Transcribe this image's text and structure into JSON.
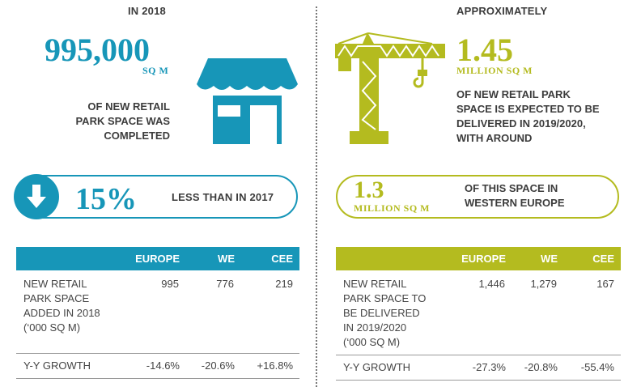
{
  "left": {
    "intro": "IN 2018",
    "big_number": "995,000",
    "unit": "SQ M",
    "caption_lines": [
      "OF NEW RETAIL",
      "PARK SPACE WAS",
      "COMPLETED"
    ],
    "pill_percent": "15%",
    "pill_text": "LESS THAN IN 2017",
    "table": {
      "headers": [
        "",
        "EUROPE",
        "WE",
        "CEE"
      ],
      "row1_label_lines": [
        "NEW RETAIL",
        "PARK SPACE",
        "ADDED IN 2018",
        "(‘000 SQ M)"
      ],
      "row1_values": [
        "995",
        "776",
        "219"
      ],
      "row2_label": "Y-Y GROWTH",
      "row2_values": [
        "-14.6%",
        "-20.6%",
        "+16.8%"
      ]
    },
    "accent": "#1796b8"
  },
  "right": {
    "intro": "APPROXIMATELY",
    "big_number": "1.45",
    "unit": "MILLION SQ M",
    "caption_lines": [
      "OF NEW RETAIL PARK",
      "SPACE IS EXPECTED TO BE",
      "DELIVERED IN 2019/2020,",
      "WITH AROUND"
    ],
    "pill_number": "1.3",
    "pill_unit": "MILLION SQ M",
    "pill_text_lines": [
      "OF THIS SPACE IN",
      "WESTERN EUROPE"
    ],
    "table": {
      "headers": [
        "",
        "EUROPE",
        "WE",
        "CEE"
      ],
      "row1_label_lines": [
        "NEW RETAIL",
        "PARK SPACE TO",
        "BE DELIVERED",
        "IN 2019/2020",
        "(‘000 SQ M)"
      ],
      "row1_values": [
        "1,446",
        "1,279",
        "167"
      ],
      "row2_label": "Y-Y GROWTH",
      "row2_values": [
        "-27.3%",
        "-20.8%",
        "-55.4%"
      ]
    },
    "accent": "#b4bb1f"
  },
  "icons": [
    "shop-icon",
    "down-arrow-icon",
    "crane-icon"
  ]
}
